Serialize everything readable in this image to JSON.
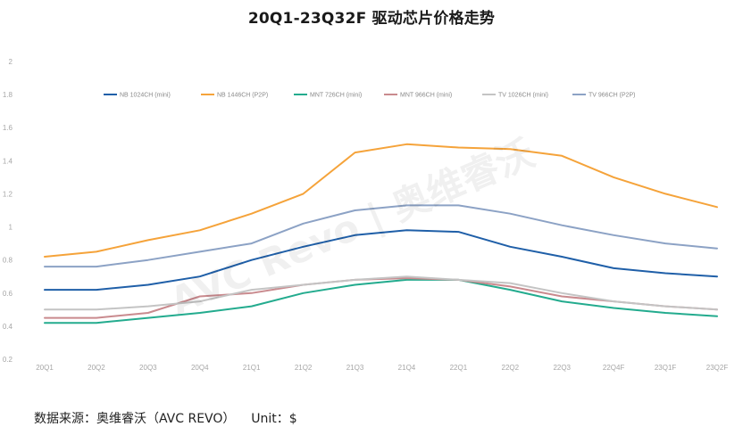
{
  "chart_data": {
    "type": "line",
    "title": "20Q1-23Q32F 驱动芯片价格走势",
    "categories": [
      "20Q1",
      "20Q2",
      "20Q3",
      "20Q4",
      "21Q1",
      "21Q2",
      "21Q3",
      "21Q4",
      "22Q1",
      "22Q2",
      "22Q3",
      "22Q4F",
      "23Q1F",
      "23Q2F"
    ],
    "ylim": [
      0.2,
      2
    ],
    "yticks": [
      "0.2",
      "0.4",
      "0.6",
      "0.8",
      "1",
      "1.2",
      "1.4",
      "1.6",
      "1.8",
      "2"
    ],
    "grid": false,
    "legend_position": "top",
    "series": [
      {
        "name": "NB 1024CH (mini)",
        "color": "#1f5fa8",
        "values": [
          0.62,
          0.62,
          0.65,
          0.7,
          0.8,
          0.88,
          0.95,
          0.98,
          0.97,
          0.88,
          0.82,
          0.75,
          0.72,
          0.7
        ]
      },
      {
        "name": "NB 1446CH (P2P)",
        "color": "#f5a33a",
        "values": [
          0.82,
          0.85,
          0.92,
          0.98,
          1.08,
          1.2,
          1.45,
          1.5,
          1.48,
          1.47,
          1.43,
          1.3,
          1.2,
          1.12
        ]
      },
      {
        "name": "MNT 726CH (mini)",
        "color": "#23ab8e",
        "values": [
          0.42,
          0.42,
          0.45,
          0.48,
          0.52,
          0.6,
          0.65,
          0.68,
          0.68,
          0.62,
          0.55,
          0.51,
          0.48,
          0.46
        ]
      },
      {
        "name": "MNT 966CH (mini)",
        "color": "#c98a8e",
        "values": [
          0.45,
          0.45,
          0.48,
          0.58,
          0.6,
          0.65,
          0.68,
          0.69,
          0.68,
          0.64,
          0.58,
          0.55,
          0.52,
          0.5
        ]
      },
      {
        "name": "TV 1026CH (mini)",
        "color": "#c4c4c4",
        "values": [
          0.5,
          0.5,
          0.52,
          0.55,
          0.62,
          0.65,
          0.68,
          0.7,
          0.68,
          0.66,
          0.6,
          0.55,
          0.52,
          0.5
        ]
      },
      {
        "name": "TV 966CH (P2P)",
        "color": "#8ca2c5",
        "values": [
          0.76,
          0.76,
          0.8,
          0.85,
          0.9,
          1.02,
          1.1,
          1.13,
          1.13,
          1.08,
          1.01,
          0.95,
          0.9,
          0.87
        ]
      }
    ]
  },
  "watermark": "AVC Revo | 奥维睿沃",
  "footer": {
    "source": "数据来源：奥维睿沃（AVC REVO）",
    "unit": "Unit：$"
  }
}
